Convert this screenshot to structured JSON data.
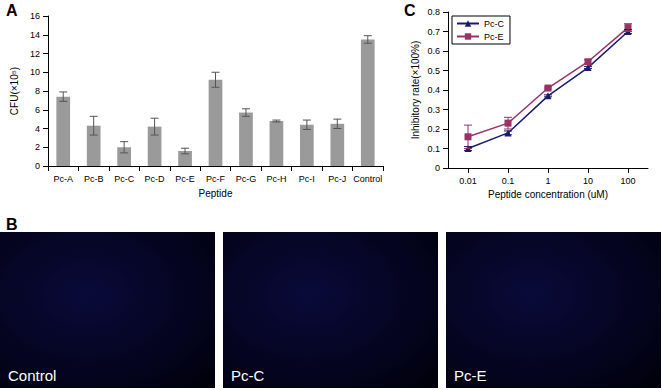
{
  "chart_data": [
    {
      "type": "bar",
      "annotations": [
        "A"
      ],
      "x_label": "Peptide",
      "y_label": "CFU(×10⁵)",
      "categories": [
        "Pc-A",
        "Pc-B",
        "Pc-C",
        "Pc-D",
        "Pc-E",
        "Pc-F",
        "Pc-G",
        "Pc-H",
        "Pc-I",
        "Pc-J",
        "Control"
      ],
      "values": [
        7.4,
        4.3,
        2.0,
        4.2,
        1.6,
        9.2,
        5.7,
        4.8,
        4.4,
        4.5,
        13.5
      ],
      "errors": [
        0.5,
        1.0,
        0.6,
        0.9,
        0.3,
        0.8,
        0.4,
        0.1,
        0.5,
        0.5,
        0.4
      ],
      "color": "#9a9a9a",
      "ylim": [
        0,
        16
      ],
      "yticks": [
        0,
        2,
        4,
        6,
        8,
        10,
        12,
        14,
        16
      ],
      "grid": false
    },
    {
      "type": "line",
      "annotations": [
        "C"
      ],
      "x_label": "Peptide concentration (uM)",
      "y_label": "Inhibitory rate(×100%)",
      "categories": [
        "0.01",
        "0.1",
        "1",
        "10",
        "100"
      ],
      "series": [
        {
          "name": "Pc-C",
          "color": "#1a1a6e",
          "marker": "triangle",
          "line_style": "solid",
          "values": [
            0.1,
            0.18,
            0.37,
            0.515,
            0.7
          ],
          "errors": [
            0.01,
            0.01,
            0.005,
            0.005,
            0.01
          ]
        },
        {
          "name": "Pc-E",
          "color": "#993366",
          "marker": "square",
          "line_style": "solid",
          "values": [
            0.16,
            0.23,
            0.41,
            0.545,
            0.72
          ],
          "errors": [
            0.06,
            0.03,
            0.005,
            0.01,
            0.02
          ]
        }
      ],
      "ylim": [
        0,
        0.8
      ],
      "yticks": [
        0,
        0.1,
        0.2,
        0.3,
        0.4,
        0.5,
        0.6,
        0.7,
        0.8
      ],
      "legend": "upper left",
      "grid": false
    }
  ],
  "images": {
    "label": "B",
    "captions": [
      "Control",
      "Pc-C",
      "Pc-E"
    ]
  }
}
